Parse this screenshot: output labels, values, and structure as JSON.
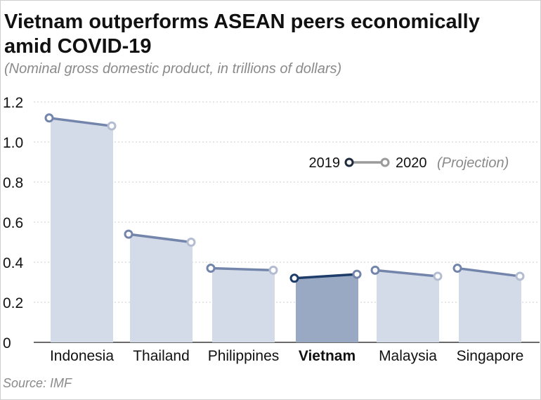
{
  "title": "Vietnam outperforms ASEAN peers economically amid COVID-19",
  "subtitle": "(Nominal gross domestic product, in trillions of dollars)",
  "source": "Source: IMF",
  "legend": {
    "label_2019": "2019",
    "label_2020": "2020",
    "note_2020": "(Projection)"
  },
  "colors": {
    "bar": "#d4dbe8",
    "bar_highlight": "#9aa9c3",
    "line": "#7385ab",
    "line_highlight": "#1d3c6a",
    "marker_2020": "#b3bcd0",
    "grid": "#cccccc",
    "legend_2019": "#1f2a3c",
    "legend_2020": "#9a9a9a"
  },
  "chart_data": {
    "type": "bar",
    "categories": [
      "Indonesia",
      "Thailand",
      "Philippines",
      "Vietnam",
      "Malaysia",
      "Singapore"
    ],
    "highlight": "Vietnam",
    "series": [
      {
        "name": "2019",
        "values": [
          1.12,
          0.54,
          0.37,
          0.32,
          0.36,
          0.37
        ]
      },
      {
        "name": "2020 (Projection)",
        "values": [
          1.08,
          0.5,
          0.36,
          0.34,
          0.33,
          0.33
        ]
      }
    ],
    "yticks": [
      "0",
      "0.2",
      "0.4",
      "0.6",
      "0.8",
      "1.0",
      "1.2"
    ],
    "ylim": [
      0,
      1.2
    ],
    "grid": true,
    "legend_position": "right"
  }
}
